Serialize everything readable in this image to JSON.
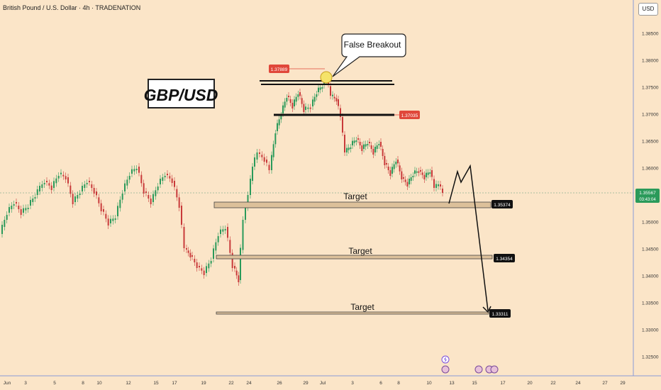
{
  "header": {
    "title": "British Pound / U.S. Dollar · 4h · TRADENATION",
    "currency": "USD"
  },
  "chart_data": {
    "type": "candlestick",
    "title": "GBP/USD",
    "y_axis": {
      "ticks": [
        "1.38500",
        "1.38000",
        "1.37500",
        "1.37000",
        "1.36500",
        "1.36000",
        "1.35500",
        "1.35000",
        "1.34500",
        "1.34000",
        "1.33500",
        "1.33000",
        "1.32500"
      ],
      "range": [
        1.3215,
        1.3894
      ]
    },
    "x_axis": {
      "ticks": [
        "Jun",
        "3",
        "5",
        "8",
        "10",
        "12",
        "15",
        "17",
        "19",
        "22",
        "24",
        "26",
        "29",
        "Jul",
        "3",
        "6",
        "8",
        "10",
        "13",
        "15",
        "17",
        "20",
        "22",
        "24",
        "27",
        "29"
      ]
    },
    "last_price": {
      "value": "1.35567",
      "countdown": "03:43:04"
    },
    "annotations": {
      "false_breakout": "False Breakout",
      "high_label": "1.37889",
      "support_label": "1.37035"
    },
    "targets": [
      {
        "label": "Target",
        "price": "1.35374"
      },
      {
        "label": "Target",
        "price": "1.34354"
      },
      {
        "label": "Target",
        "price": "1.33311"
      }
    ],
    "colors": {
      "up": "#2a9a5a",
      "down": "#c83a3a",
      "target_zone": "#dcc09a",
      "badge": "#e0473a",
      "background": "#fbe5c8"
    }
  }
}
